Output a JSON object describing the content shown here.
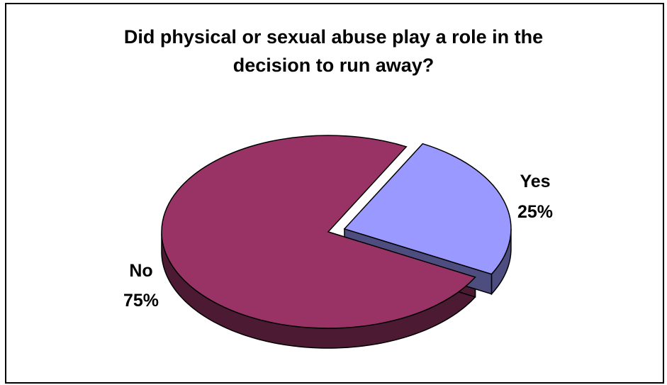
{
  "chart_data": {
    "type": "pie",
    "style": "3d-exploded",
    "title_lines": [
      "Did physical or sexual abuse play a role in the",
      "decision to run away?"
    ],
    "categories": [
      "No",
      "Yes"
    ],
    "values": [
      75,
      25
    ],
    "labels": [
      {
        "category": "No",
        "percent": "75%"
      },
      {
        "category": "Yes",
        "percent": "25%"
      }
    ],
    "exploded": [
      "Yes"
    ],
    "colors": {
      "No": {
        "top": "#993366",
        "side": "#4d1a33"
      },
      "Yes": {
        "top": "#9999ff",
        "side": "#4d4d80"
      }
    },
    "legend": "none",
    "grid": false
  }
}
